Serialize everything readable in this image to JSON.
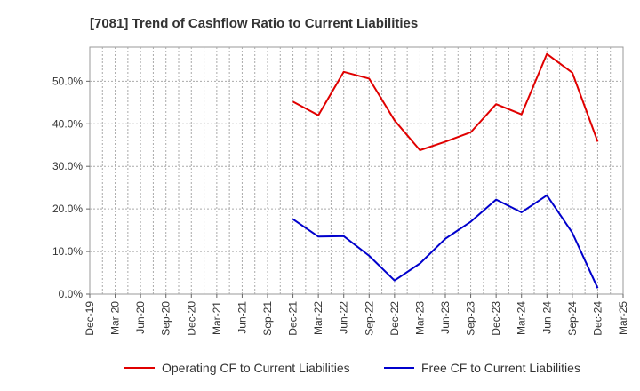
{
  "chart_data": {
    "type": "line",
    "title": "[7081]  Trend of Cashflow Ratio to Current Liabilities",
    "xlabel": "",
    "ylabel": "",
    "x_tick_labels": [
      "Dec-19",
      "Mar-20",
      "Jun-20",
      "Sep-20",
      "Dec-20",
      "Mar-21",
      "Jun-21",
      "Sep-21",
      "Dec-21",
      "Mar-22",
      "Jun-22",
      "Sep-22",
      "Dec-22",
      "Mar-23",
      "Jun-23",
      "Sep-23",
      "Dec-23",
      "Mar-24",
      "Jun-24",
      "Sep-24",
      "Dec-24",
      "Mar-25"
    ],
    "y_tick_labels": [
      "0.0%",
      "10.0%",
      "20.0%",
      "30.0%",
      "40.0%",
      "50.0%"
    ],
    "y_ticks": [
      0,
      10,
      20,
      30,
      40,
      50
    ],
    "ylim": [
      0,
      58
    ],
    "grid": true,
    "legend_position": "bottom",
    "series": [
      {
        "name": "Operating CF to Current Liabilities",
        "color": "#e00000",
        "x": [
          "Dec-21",
          "Mar-22",
          "Jun-22",
          "Sep-22",
          "Dec-22",
          "Mar-23",
          "Jun-23",
          "Sep-23",
          "Dec-23",
          "Mar-24",
          "Jun-24",
          "Sep-24",
          "Dec-24"
        ],
        "values": [
          45.2,
          42.0,
          52.2,
          50.6,
          40.8,
          33.8,
          35.8,
          38.0,
          44.6,
          42.2,
          56.4,
          52.0,
          35.8
        ]
      },
      {
        "name": "Free CF to Current Liabilities",
        "color": "#0000cc",
        "x": [
          "Dec-21",
          "Mar-22",
          "Jun-22",
          "Sep-22",
          "Dec-22",
          "Mar-23",
          "Jun-23",
          "Sep-23",
          "Dec-23",
          "Mar-24",
          "Jun-24",
          "Sep-24",
          "Dec-24"
        ],
        "values": [
          17.6,
          13.5,
          13.6,
          9.0,
          3.2,
          7.2,
          13.0,
          17.0,
          22.2,
          19.2,
          23.2,
          14.4,
          1.4
        ]
      }
    ]
  }
}
